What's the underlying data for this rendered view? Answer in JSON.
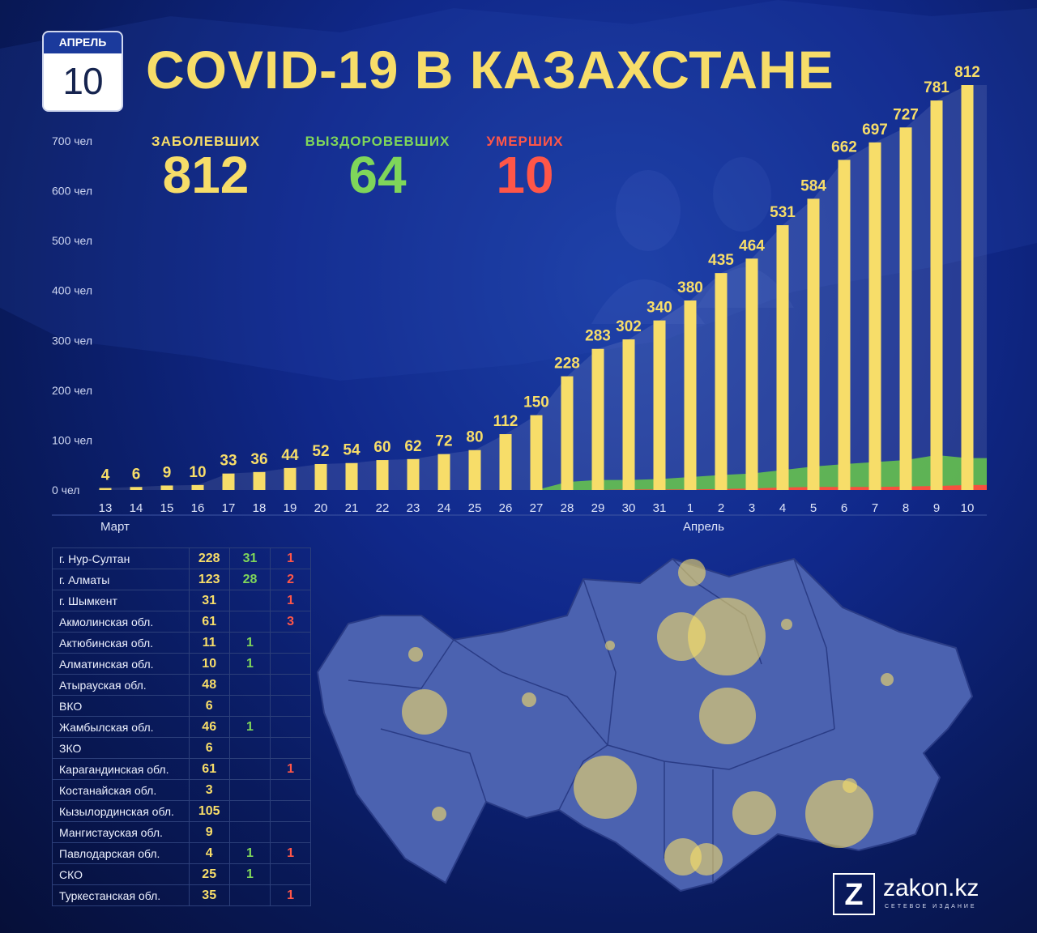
{
  "calendar": {
    "month": "АПРЕЛЬ",
    "day": "10"
  },
  "title": "COVID-19 В КАЗАХСТАНЕ",
  "stats": {
    "infected_label": "ЗАБОЛЕВШИХ",
    "infected_value": "812",
    "recovered_label": "ВЫЗДОРОВЕВШИХ",
    "recovered_value": "64",
    "deaths_label": "УМЕРШИХ",
    "deaths_value": "10"
  },
  "colors": {
    "infected": "#f7dd69",
    "recovered": "#69c84a",
    "deaths": "#ff4b3e",
    "title": "#f7dd69"
  },
  "chart_data": {
    "type": "bar",
    "categories": [
      "13",
      "14",
      "15",
      "16",
      "17",
      "18",
      "19",
      "20",
      "21",
      "22",
      "23",
      "24",
      "25",
      "26",
      "27",
      "28",
      "29",
      "30",
      "31",
      "1",
      "2",
      "3",
      "4",
      "5",
      "6",
      "7",
      "8",
      "9",
      "10"
    ],
    "month_labels": {
      "march": "Март",
      "april": "Апрель"
    },
    "series": [
      {
        "name": "ЗАБОЛЕВШИХ",
        "values": [
          4,
          6,
          9,
          10,
          33,
          36,
          44,
          52,
          54,
          60,
          62,
          72,
          80,
          112,
          150,
          228,
          283,
          302,
          340,
          380,
          435,
          464,
          531,
          584,
          662,
          697,
          727,
          781,
          812
        ]
      },
      {
        "name": "ВЫЗДОРОВЕВШИХ",
        "values": [
          0,
          0,
          0,
          0,
          0,
          0,
          0,
          0,
          0,
          0,
          0,
          0,
          0,
          0,
          0,
          16,
          20,
          20,
          22,
          26,
          30,
          33,
          40,
          47,
          52,
          56,
          60,
          70,
          64
        ]
      },
      {
        "name": "УМЕРШИХ",
        "values": [
          0,
          0,
          0,
          0,
          0,
          0,
          0,
          0,
          0,
          0,
          0,
          0,
          0,
          0,
          0,
          0,
          0,
          1,
          1,
          1,
          2,
          3,
          5,
          6,
          6,
          6,
          7,
          8,
          10
        ]
      }
    ],
    "y_ticks": [
      "0 чел",
      "100 чел",
      "200 чел",
      "300 чел",
      "400 чел",
      "500 чел",
      "600 чел",
      "700 чел"
    ],
    "ylim": [
      0,
      812
    ],
    "grid": false
  },
  "regions": [
    {
      "name": "г. Нур-Султан",
      "infected": "228",
      "recovered": "31",
      "deaths": "1"
    },
    {
      "name": "г. Алматы",
      "infected": "123",
      "recovered": "28",
      "deaths": "2"
    },
    {
      "name": "г. Шымкент",
      "infected": "31",
      "recovered": "",
      "deaths": "1"
    },
    {
      "name": "Акмолинская обл.",
      "infected": "61",
      "recovered": "",
      "deaths": "3"
    },
    {
      "name": "Актюбинская обл.",
      "infected": "11",
      "recovered": "1",
      "deaths": ""
    },
    {
      "name": "Алматинская обл.",
      "infected": "10",
      "recovered": "1",
      "deaths": ""
    },
    {
      "name": "Атырауская обл.",
      "infected": "48",
      "recovered": "",
      "deaths": ""
    },
    {
      "name": "ВКО",
      "infected": "6",
      "recovered": "",
      "deaths": ""
    },
    {
      "name": "Жамбылская обл.",
      "infected": "46",
      "recovered": "1",
      "deaths": ""
    },
    {
      "name": "ЗКО",
      "infected": "6",
      "recovered": "",
      "deaths": ""
    },
    {
      "name": "Карагандинская обл.",
      "infected": "61",
      "recovered": "",
      "deaths": "1"
    },
    {
      "name": "Костанайская обл.",
      "infected": "3",
      "recovered": "",
      "deaths": ""
    },
    {
      "name": "Кызылординская обл.",
      "infected": "105",
      "recovered": "",
      "deaths": ""
    },
    {
      "name": "Мангистауская обл.",
      "infected": "9",
      "recovered": "",
      "deaths": ""
    },
    {
      "name": "Павлодарская обл.",
      "infected": "4",
      "recovered": "1",
      "deaths": "1"
    },
    {
      "name": "СКО",
      "infected": "25",
      "recovered": "1",
      "deaths": ""
    },
    {
      "name": "Туркестанская обл.",
      "infected": "35",
      "recovered": "",
      "deaths": "1"
    }
  ],
  "logo": {
    "mark": "Z",
    "name": "zakon.kz",
    "tagline": "СЕТЕВОЕ ИЗДАНИЕ"
  }
}
